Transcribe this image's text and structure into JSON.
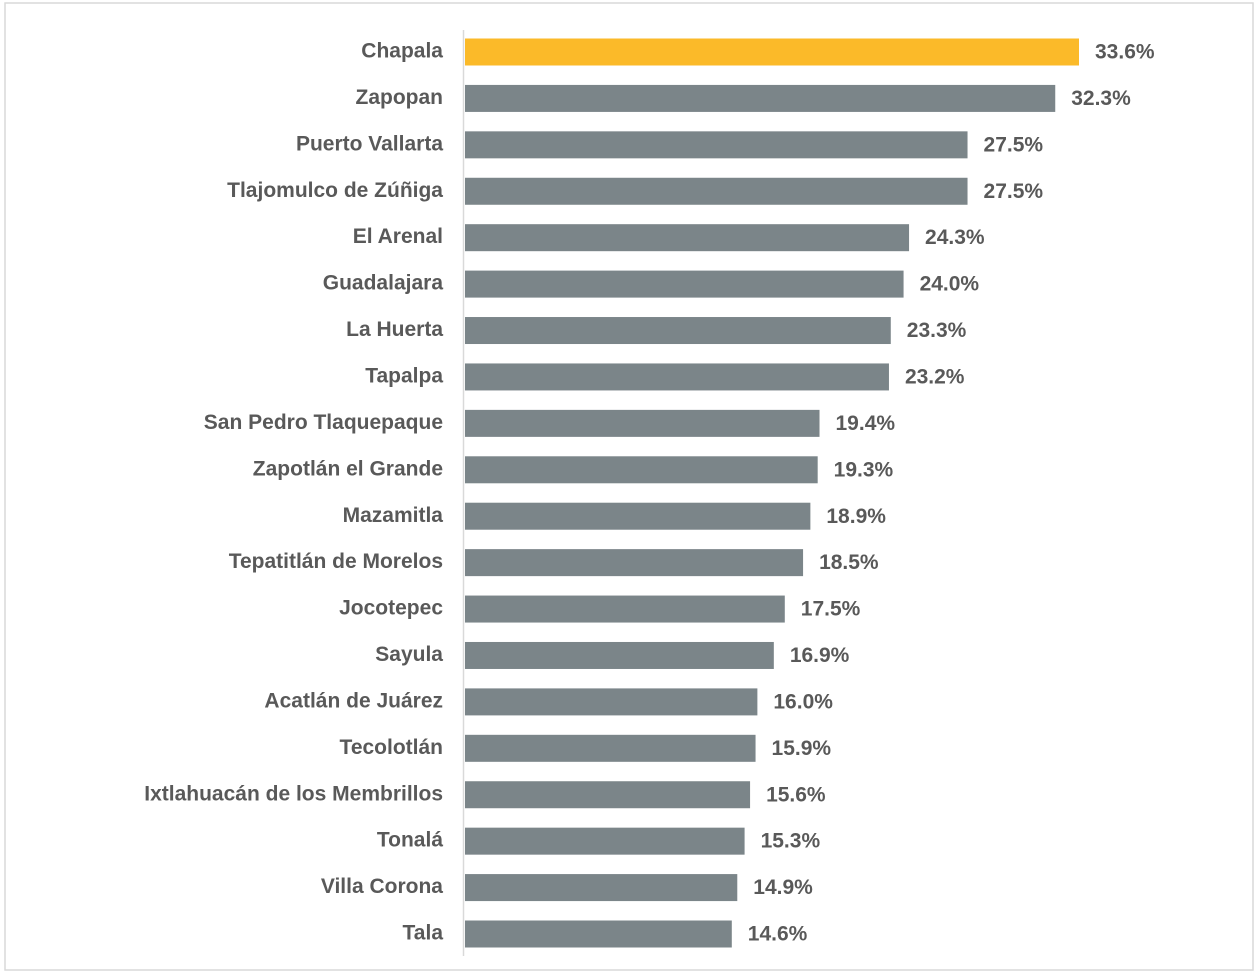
{
  "chart_data": {
    "type": "barh",
    "categories": [
      "Chapala",
      "Zapopan",
      "Puerto Vallarta",
      "Tlajomulco de Zúñiga",
      "El Arenal",
      "Guadalajara",
      "La Huerta",
      "Tapalpa",
      "San Pedro Tlaquepaque",
      "Zapotlán el Grande",
      "Mazamitla",
      "Tepatitlán de Morelos",
      "Jocotepec",
      "Sayula",
      "Acatlán de Juárez",
      "Tecolotlán",
      "Ixtlahuacán de los Membrillos",
      "Tonalá",
      "Villa Corona",
      "Tala"
    ],
    "values": [
      33.6,
      32.3,
      27.5,
      27.5,
      24.3,
      24.0,
      23.3,
      23.2,
      19.4,
      19.3,
      18.9,
      18.5,
      17.5,
      16.9,
      16.0,
      15.9,
      15.6,
      15.3,
      14.9,
      14.6
    ],
    "value_labels": [
      "33.6%",
      "32.3%",
      "27.5%",
      "27.5%",
      "24.3%",
      "24.0%",
      "23.3%",
      "23.2%",
      "19.4%",
      "19.3%",
      "18.9%",
      "18.5%",
      "17.5%",
      "16.9%",
      "16.0%",
      "15.9%",
      "15.6%",
      "15.3%",
      "14.9%",
      "14.6%"
    ],
    "colors": [
      "#fbba29",
      "#7b8589",
      "#7b8589",
      "#7b8589",
      "#7b8589",
      "#7b8589",
      "#7b8589",
      "#7b8589",
      "#7b8589",
      "#7b8589",
      "#7b8589",
      "#7b8589",
      "#7b8589",
      "#7b8589",
      "#7b8589",
      "#7b8589",
      "#7b8589",
      "#7b8589",
      "#7b8589",
      "#7b8589"
    ]
  }
}
